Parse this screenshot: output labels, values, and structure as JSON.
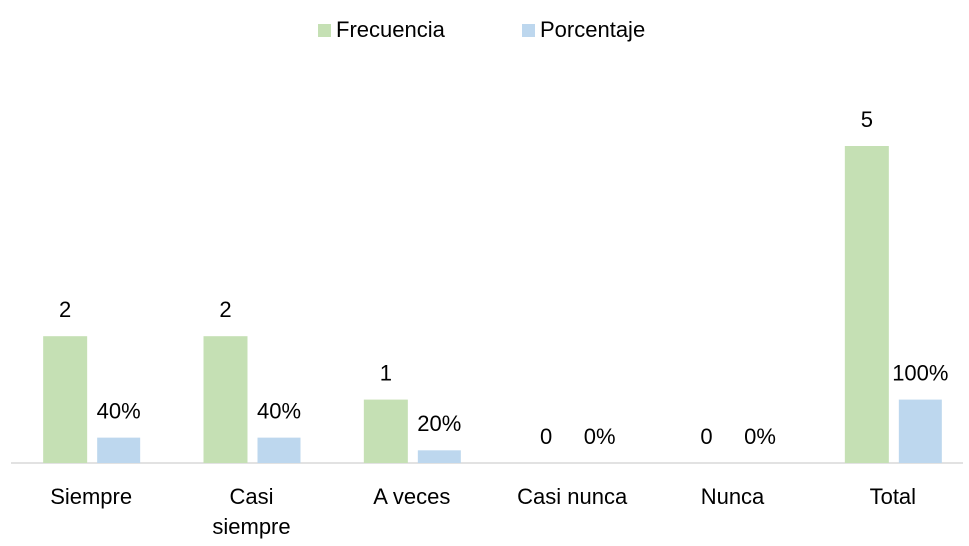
{
  "chart_data": {
    "type": "bar",
    "categories": [
      "Siempre",
      "Casi siempre",
      "A veces",
      "Casi nunca",
      "Nunca",
      "Total"
    ],
    "series": [
      {
        "name": "Frecuencia",
        "color": "#c5e0b4",
        "values": [
          2,
          2,
          1,
          0,
          0,
          5
        ]
      },
      {
        "name": "Porcentaje",
        "color": "#bdd7ee",
        "values": [
          0.4,
          0.4,
          0.2,
          0,
          0,
          1
        ],
        "value_labels": [
          "40%",
          "40%",
          "20%",
          "0%",
          "0%",
          "100%"
        ]
      }
    ],
    "ylim": [
      0,
      5
    ],
    "legend": "top"
  }
}
